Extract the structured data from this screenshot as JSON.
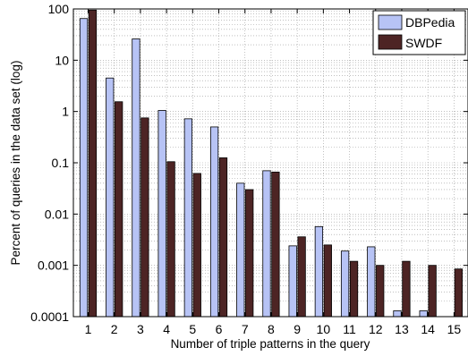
{
  "chart_data": {
    "type": "bar",
    "xlabel": "Number of triple patterns in the query",
    "ylabel": "Percent of queries in the data set (log)",
    "yscale": "log",
    "ylim": [
      0.0001,
      100
    ],
    "grid": true,
    "legend_position": "top-right",
    "categories": [
      "1",
      "2",
      "3",
      "4",
      "5",
      "6",
      "7",
      "8",
      "9",
      "10",
      "11",
      "12",
      "13",
      "14",
      "15"
    ],
    "y_ticks": [
      {
        "value": 0.0001,
        "label": "0.0001"
      },
      {
        "value": 0.001,
        "label": "0.001"
      },
      {
        "value": 0.01,
        "label": "0.01"
      },
      {
        "value": 0.1,
        "label": "0.1"
      },
      {
        "value": 1,
        "label": "1"
      },
      {
        "value": 10,
        "label": "10"
      },
      {
        "value": 100,
        "label": "100"
      }
    ],
    "series": [
      {
        "name": "DBPedia",
        "color": "#b7c3f5",
        "values": [
          65,
          4.5,
          26,
          1.05,
          0.72,
          0.5,
          0.04,
          0.07,
          0.0024,
          0.0057,
          0.0019,
          0.0023,
          0.00013,
          0.00013,
          null
        ]
      },
      {
        "name": "SWDF",
        "color": "#4d2424",
        "values": [
          95,
          1.55,
          0.75,
          0.105,
          0.062,
          0.125,
          0.03,
          0.066,
          0.0036,
          0.0025,
          0.0012,
          0.001,
          0.0012,
          0.001,
          0.00085
        ]
      }
    ]
  }
}
